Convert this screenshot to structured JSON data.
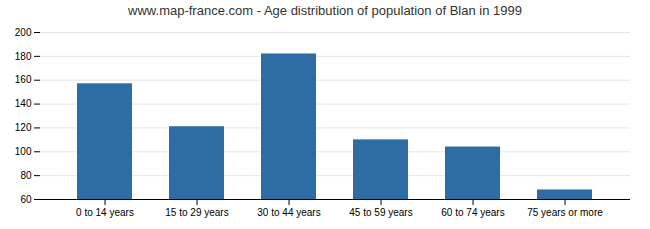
{
  "chart_data": {
    "type": "bar",
    "title": "www.map-france.com - Age distribution of population of Blan in 1999",
    "categories": [
      "0 to 14 years",
      "15 to 29 years",
      "30 to 44 years",
      "45 to 59 years",
      "60 to 74 years",
      "75 years or more"
    ],
    "values": [
      157,
      121,
      182,
      110,
      104,
      68
    ],
    "color": "#2e6da4",
    "ylim": [
      60,
      200
    ],
    "yticks": [
      60,
      80,
      100,
      120,
      140,
      160,
      180,
      200
    ],
    "grid": true
  }
}
